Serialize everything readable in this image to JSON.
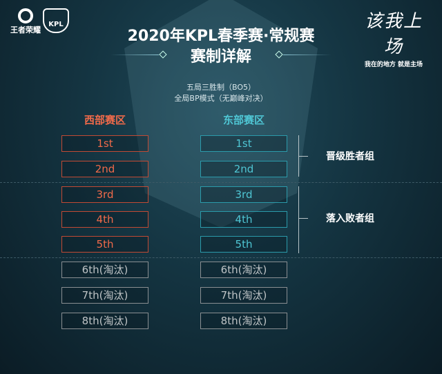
{
  "logos": {
    "left_brand": "王者荣耀",
    "kpl": "KPL",
    "slogan": "该我上场",
    "slogan_sub": "我在的地方 就是主场"
  },
  "header": {
    "title": "2020年KPL春季赛·常规赛",
    "subtitle": "赛制详解",
    "rule1": "五局三胜制（BO5）",
    "rule2": "全局BP模式（无巅峰对决）"
  },
  "colors": {
    "west": "#f06a4a",
    "east": "#4fc6d4",
    "eliminated": "#bfc4c6"
  },
  "west": {
    "title": "西部赛区",
    "ranks": [
      "1st",
      "2nd",
      "3rd",
      "4th",
      "5th",
      "6th(淘汰)",
      "7th(淘汰)",
      "8th(淘汰)"
    ]
  },
  "east": {
    "title": "东部赛区",
    "ranks": [
      "1st",
      "2nd",
      "3rd",
      "4th",
      "5th",
      "6th(淘汰)",
      "7th(淘汰)",
      "8th(淘汰)"
    ]
  },
  "groups": {
    "winners": "晋级胜者组",
    "losers": "落入败者组"
  }
}
